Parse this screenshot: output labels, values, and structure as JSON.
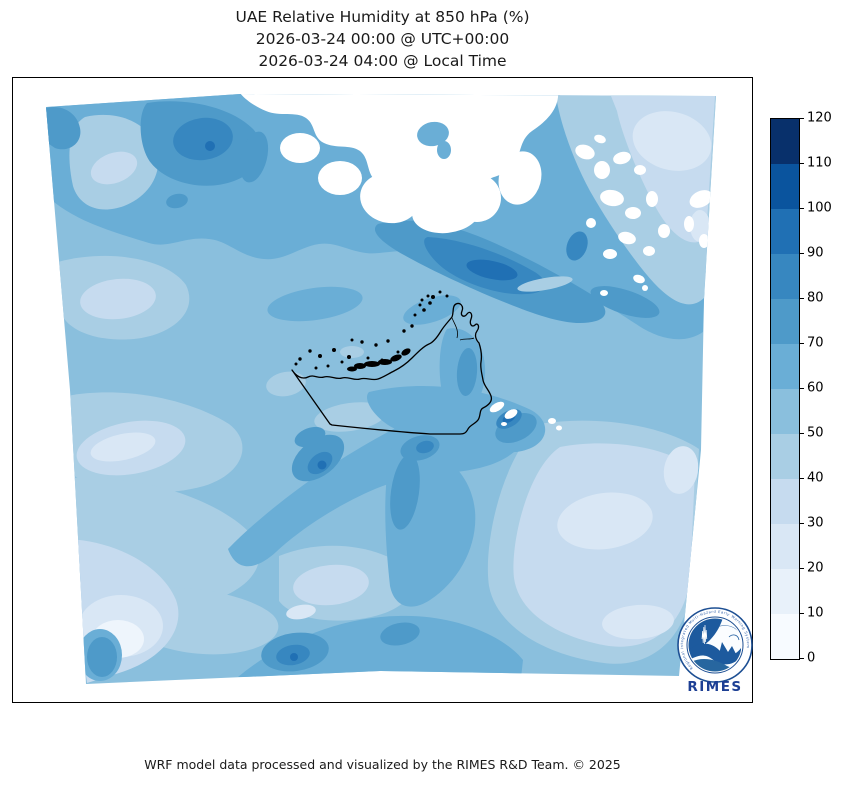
{
  "title": {
    "line1": "UAE Relative Humidity at 850 hPa (%)",
    "line2": "2026-03-24 00:00 @ UTC+00:00",
    "line3": "2026-03-24 04:00 @ Local Time"
  },
  "footer": {
    "text": "WRF model data processed and visualized by the RIMES R&D Team. © 2025"
  },
  "colorbar": {
    "unit": "%",
    "min": 0,
    "max": 120,
    "step": 10,
    "tick_labels_top_to_bottom": [
      "120",
      "110",
      "100",
      "90",
      "80",
      "70",
      "60",
      "50",
      "40",
      "30",
      "20",
      "10",
      "0"
    ],
    "segments_top_to_bottom": [
      {
        "range": "110-120",
        "color": "#08306b"
      },
      {
        "range": "100-110",
        "color": "#0a549e"
      },
      {
        "range": "90-100",
        "color": "#2070b4"
      },
      {
        "range": "80-90",
        "color": "#3787c0"
      },
      {
        "range": "70-80",
        "color": "#4e9ac9"
      },
      {
        "range": "60-70",
        "color": "#6aaed6"
      },
      {
        "range": "50-60",
        "color": "#8abfdd"
      },
      {
        "range": "40-50",
        "color": "#a9cee4"
      },
      {
        "range": "30-40",
        "color": "#c6dbef"
      },
      {
        "range": "20-30",
        "color": "#d9e7f5"
      },
      {
        "range": "10-20",
        "color": "#e8f1fa"
      },
      {
        "range": "0-10",
        "color": "#f7fbff"
      }
    ]
  },
  "map": {
    "variable": "Relative Humidity",
    "level": "850 hPa",
    "units": "%",
    "region": "UAE and surrounding Gulf region (WRF model domain)",
    "overlay": "UAE national border with coastal islands",
    "border_color": "#000000",
    "terrain_mask_color": "#ffffff"
  },
  "logo": {
    "acronym": "RIMES",
    "motto": "Regional Integrated Multi-Hazard Early Warning System",
    "color": "#1d4f93"
  }
}
